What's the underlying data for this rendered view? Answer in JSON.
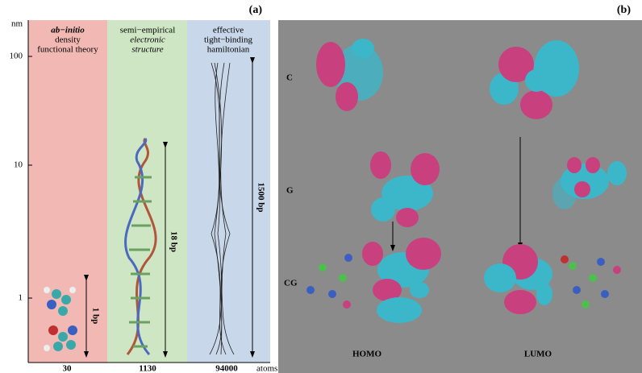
{
  "panel_a": {
    "label": "(a)",
    "y_unit": "nm",
    "y_ticks": [
      "100",
      "10",
      "1"
    ],
    "x_unit": "atoms",
    "columns": [
      {
        "title_lines": [
          "ab−initio",
          "density",
          "functional theory"
        ],
        "atoms": "30",
        "span": "1 bp"
      },
      {
        "title_lines": [
          "semi−empirical",
          "electronic",
          "structure"
        ],
        "atoms": "1130",
        "span": "18 bp"
      },
      {
        "title_lines": [
          "effective",
          "tight−binding",
          "hamiltonian"
        ],
        "atoms": "94000",
        "span": "1500 bp"
      }
    ]
  },
  "panel_b": {
    "label": "(b)",
    "rows": [
      "C",
      "G",
      "CG"
    ],
    "columns": [
      "HOMO",
      "LUMO"
    ]
  }
}
